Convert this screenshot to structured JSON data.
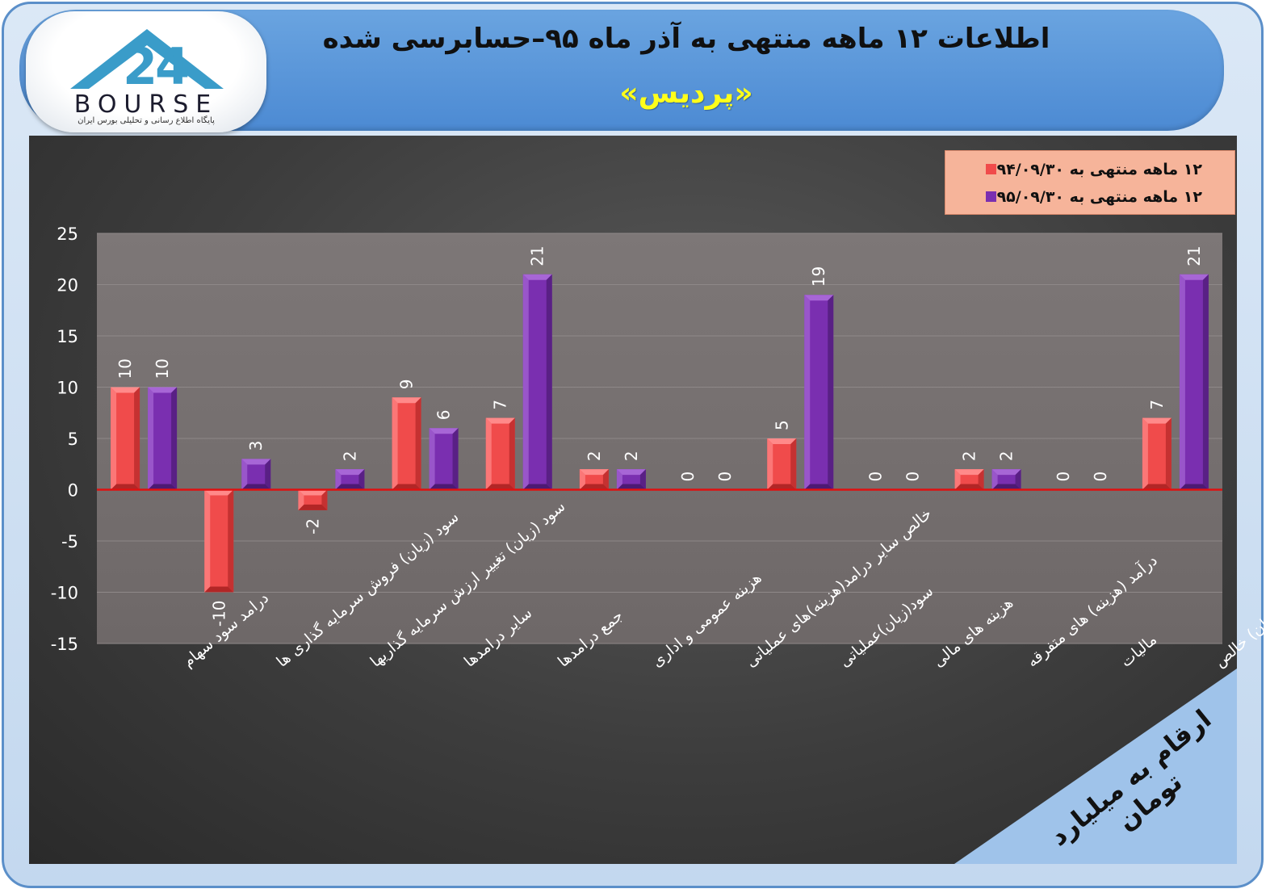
{
  "header": {
    "title": "اطلاعات ۱۲ ماهه منتهی به آذر ماه ۹۵–حسابرسی شده",
    "subtitle": "«پردیس»"
  },
  "logo": {
    "word": "BOURSE",
    "tagline": "پایگاه اطلاع رسانی و تحلیلی بورس ایران",
    "icon": "bourse-24-logo-icon"
  },
  "unit_note": "ارقام به میلیارد تومان",
  "colors": {
    "series_1": "#f04b4b",
    "series_2": "#7a2fb0",
    "zero_line": "#e01010",
    "legend_bg": "#f6b49a"
  },
  "chart_data": {
    "type": "bar",
    "title": "",
    "xlabel": "",
    "ylabel": "",
    "ylim": [
      -15,
      25
    ],
    "yticks": [
      25,
      20,
      15,
      10,
      5,
      0,
      -5,
      -10,
      -15
    ],
    "grid": true,
    "legend_position": "top-right",
    "categories": [
      "درامد سود سهام",
      "سود (زیان) فروش سرمایه گذاری ها",
      "سود (زیان) تغییر ارزش سرمایه گذاریها",
      "سایر درامدها",
      "جمع درامدها",
      "هزینه عمومی و اداری",
      "خالص سایر درامد(هزینه)های عملیاتی",
      "سود(زیان)عملیاتی",
      "هزینه های مالی",
      "درآمد (هزینه) های متفرقه",
      "مالیات",
      "سود(زیان) خالص"
    ],
    "series": [
      {
        "name": "۱۲ ماهه منتهی به ۹۴/۰۹/۳۰",
        "values": [
          10,
          -10,
          -2,
          9,
          7,
          2,
          0,
          5,
          0,
          2,
          0,
          7
        ]
      },
      {
        "name": "۱۲ ماهه منتهی به ۹۵/۰۹/۳۰",
        "values": [
          10,
          3,
          2,
          6,
          21,
          2,
          0,
          19,
          0,
          2,
          0,
          21
        ]
      }
    ]
  }
}
